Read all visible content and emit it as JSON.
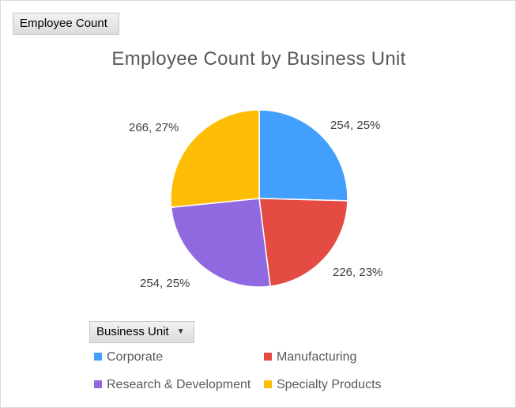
{
  "field_buttons": {
    "value_field": "Employee Count",
    "axis_field": "Business Unit"
  },
  "chart_data": {
    "type": "pie",
    "title": "Employee Count by Business Unit",
    "categories": [
      "Corporate",
      "Manufacturing",
      "Research & Development",
      "Specialty Products"
    ],
    "values": [
      254,
      226,
      254,
      266
    ],
    "percent_labels": [
      "25%",
      "23%",
      "25%",
      "27%"
    ],
    "data_labels": [
      "254, 25%",
      "226, 23%",
      "254, 25%",
      "266, 27%"
    ],
    "colors": [
      "#42a0fc",
      "#e34b43",
      "#8f69e0",
      "#fdbd05"
    ],
    "legend_position": "bottom"
  }
}
